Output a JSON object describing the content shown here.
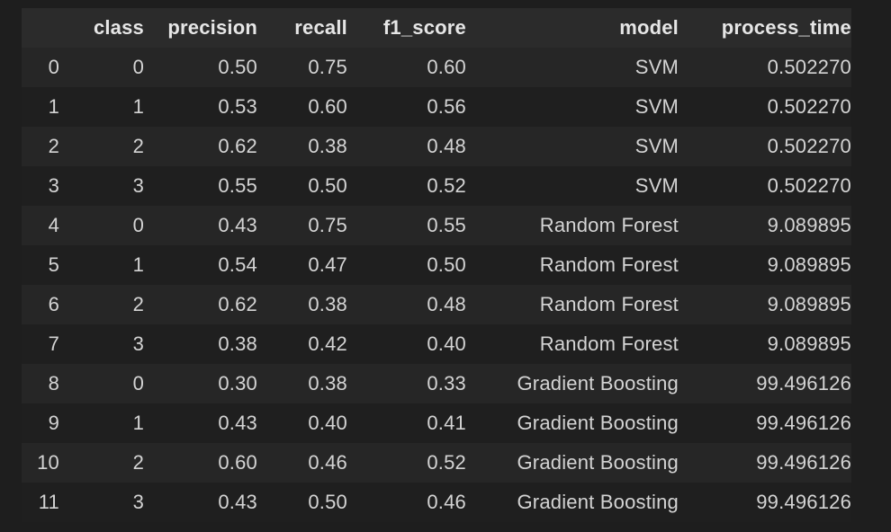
{
  "columns": [
    "",
    "class",
    "precision",
    "recall",
    "f1_score",
    "model",
    "process_time"
  ],
  "rows": [
    {
      "index": "0",
      "class": "0",
      "precision": "0.50",
      "recall": "0.75",
      "f1_score": "0.60",
      "model": "SVM",
      "process_time": "0.502270"
    },
    {
      "index": "1",
      "class": "1",
      "precision": "0.53",
      "recall": "0.60",
      "f1_score": "0.56",
      "model": "SVM",
      "process_time": "0.502270"
    },
    {
      "index": "2",
      "class": "2",
      "precision": "0.62",
      "recall": "0.38",
      "f1_score": "0.48",
      "model": "SVM",
      "process_time": "0.502270"
    },
    {
      "index": "3",
      "class": "3",
      "precision": "0.55",
      "recall": "0.50",
      "f1_score": "0.52",
      "model": "SVM",
      "process_time": "0.502270"
    },
    {
      "index": "4",
      "class": "0",
      "precision": "0.43",
      "recall": "0.75",
      "f1_score": "0.55",
      "model": "Random Forest",
      "process_time": "9.089895"
    },
    {
      "index": "5",
      "class": "1",
      "precision": "0.54",
      "recall": "0.47",
      "f1_score": "0.50",
      "model": "Random Forest",
      "process_time": "9.089895"
    },
    {
      "index": "6",
      "class": "2",
      "precision": "0.62",
      "recall": "0.38",
      "f1_score": "0.48",
      "model": "Random Forest",
      "process_time": "9.089895"
    },
    {
      "index": "7",
      "class": "3",
      "precision": "0.38",
      "recall": "0.42",
      "f1_score": "0.40",
      "model": "Random Forest",
      "process_time": "9.089895"
    },
    {
      "index": "8",
      "class": "0",
      "precision": "0.30",
      "recall": "0.38",
      "f1_score": "0.33",
      "model": "Gradient Boosting",
      "process_time": "99.496126"
    },
    {
      "index": "9",
      "class": "1",
      "precision": "0.43",
      "recall": "0.40",
      "f1_score": "0.41",
      "model": "Gradient Boosting",
      "process_time": "99.496126"
    },
    {
      "index": "10",
      "class": "2",
      "precision": "0.60",
      "recall": "0.46",
      "f1_score": "0.52",
      "model": "Gradient Boosting",
      "process_time": "99.496126"
    },
    {
      "index": "11",
      "class": "3",
      "precision": "0.43",
      "recall": "0.50",
      "f1_score": "0.46",
      "model": "Gradient Boosting",
      "process_time": "99.496126"
    }
  ],
  "colors": {
    "background": "#1e1e1e",
    "header_row": "#2b2b2b",
    "row_odd": "#262626",
    "row_even": "#1f1f1f",
    "text": "#d4d4d4"
  }
}
